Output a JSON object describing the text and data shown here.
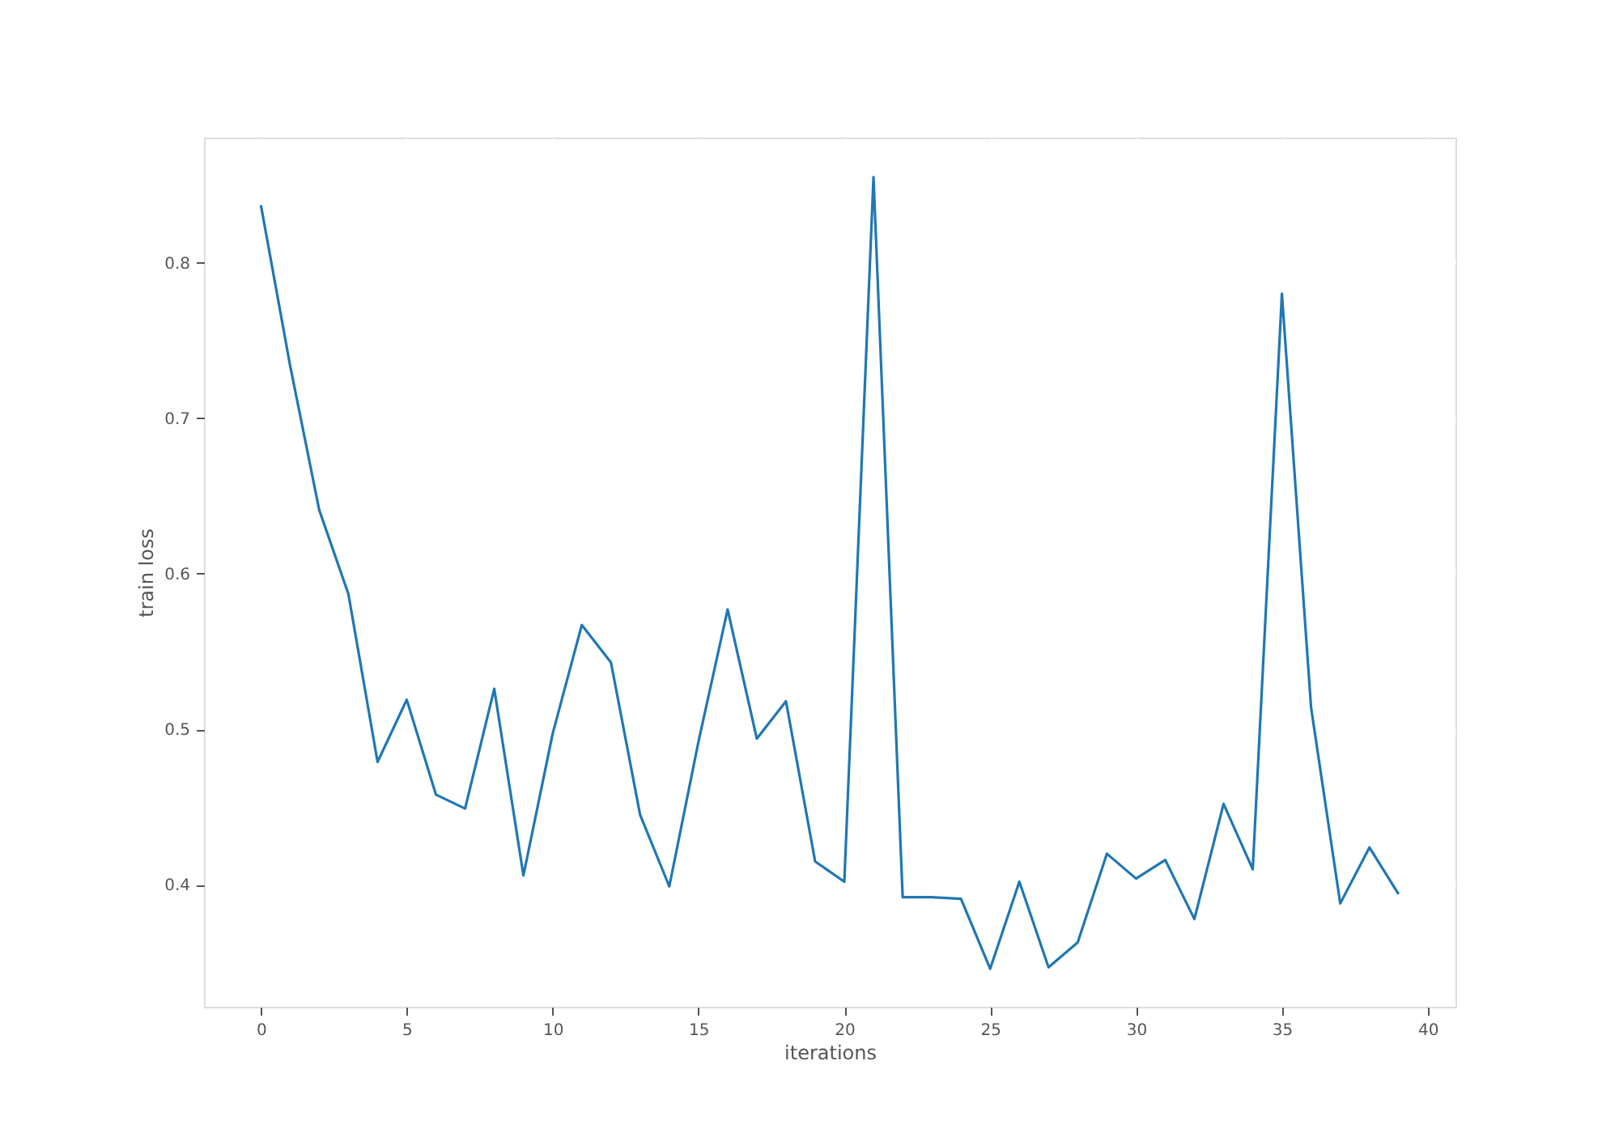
{
  "chart_data": {
    "type": "line",
    "xlabel": "iterations",
    "ylabel": "train loss",
    "x": [
      0,
      1,
      2,
      3,
      4,
      5,
      6,
      7,
      8,
      9,
      10,
      11,
      12,
      13,
      14,
      15,
      16,
      17,
      18,
      19,
      20,
      21,
      22,
      23,
      24,
      25,
      26,
      27,
      28,
      29,
      30,
      31,
      32,
      33,
      34,
      35,
      36,
      37,
      38,
      39
    ],
    "series": [
      {
        "color": "#1f77b4",
        "values": [
          0.837,
          0.734,
          0.641,
          0.587,
          0.479,
          0.519,
          0.458,
          0.449,
          0.526,
          0.406,
          0.497,
          0.567,
          0.543,
          0.445,
          0.399,
          0.492,
          0.577,
          0.494,
          0.518,
          0.415,
          0.402,
          0.855,
          0.392,
          0.392,
          0.391,
          0.346,
          0.402,
          0.347,
          0.363,
          0.42,
          0.404,
          0.416,
          0.378,
          0.452,
          0.41,
          0.78,
          0.514,
          0.388,
          0.424,
          0.394
        ]
      }
    ],
    "xlim": [
      -1.95,
      40.95
    ],
    "ylim": [
      0.3216,
      0.8804
    ],
    "xticks": [
      0,
      5,
      10,
      15,
      20,
      25,
      30,
      35,
      40
    ],
    "yticks": [
      0.4,
      0.5,
      0.6,
      0.7,
      0.8
    ],
    "grid": true,
    "marker": "none",
    "line_style": "solid"
  }
}
